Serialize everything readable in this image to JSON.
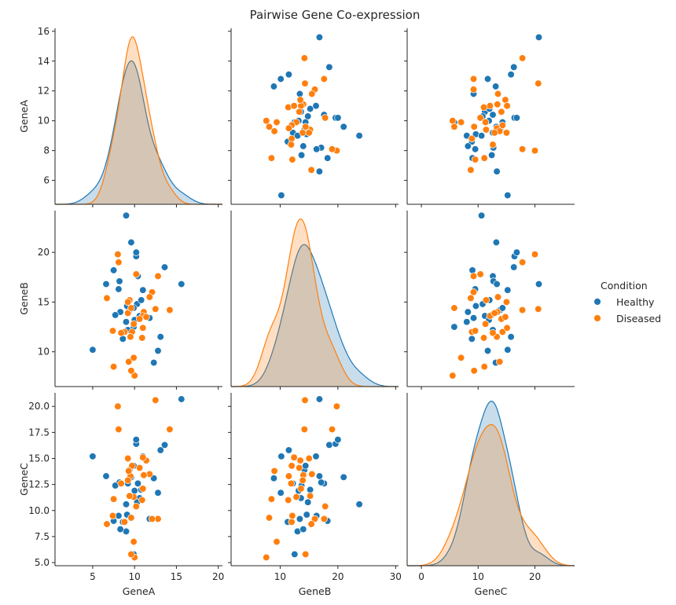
{
  "chart_data": {
    "type": "scatter",
    "title": "Pairwise Gene Co-expression",
    "variables": [
      "GeneA",
      "GeneB",
      "GeneC"
    ],
    "axis_ranges": {
      "GeneA": [
        0.5,
        20.5
      ],
      "GeneB": [
        1.5,
        30.5
      ],
      "GeneC": [
        -2.5,
        27.0
      ]
    },
    "row_ranges": {
      "GeneA": [
        4.4,
        16.2
      ],
      "GeneB": [
        6.5,
        24.2
      ],
      "GeneC": [
        4.7,
        21.3
      ]
    },
    "x_ticks": {
      "GeneA": [
        5,
        10,
        15,
        20
      ],
      "GeneB": [
        10,
        20,
        30
      ],
      "GeneC": [
        0,
        10,
        20
      ]
    },
    "y_tick_labels": {
      "GeneA": [
        "6",
        "8",
        "10",
        "12",
        "14",
        "16"
      ],
      "GeneB": [
        "10",
        "15",
        "20"
      ],
      "GeneC": [
        "5.0",
        "7.5",
        "10.0",
        "12.5",
        "15.0",
        "17.5",
        "20.0"
      ]
    },
    "y_ticks": {
      "GeneA": [
        6,
        8,
        10,
        12,
        14,
        16
      ],
      "GeneB": [
        10,
        15,
        20
      ],
      "GeneC": [
        5,
        7.5,
        10,
        12.5,
        15,
        17.5,
        20
      ]
    },
    "legend": {
      "title": "Condition",
      "placement": "right",
      "entries": [
        "Healthy",
        "Diseased"
      ]
    },
    "colors": {
      "Healthy": "#1f77b4",
      "Diseased": "#ff7f0e"
    },
    "series": [
      {
        "name": "Healthy",
        "points": [
          {
            "GeneA": 15.6,
            "GeneB": 16.8,
            "GeneC": 20.7
          },
          {
            "GeneA": 13.6,
            "GeneB": 18.5,
            "GeneC": 16.3
          },
          {
            "GeneA": 13.1,
            "GeneB": 11.5,
            "GeneC": 15.8
          },
          {
            "GeneA": 12.8,
            "GeneB": 10.1,
            "GeneC": 11.7
          },
          {
            "GeneA": 12.3,
            "GeneB": 8.9,
            "GeneC": 13.1
          },
          {
            "GeneA": 11.8,
            "GeneB": 13.4,
            "GeneC": 9.2
          },
          {
            "GeneA": 11.0,
            "GeneB": 16.2,
            "GeneC": 15.2
          },
          {
            "GeneA": 10.6,
            "GeneB": 13.6,
            "GeneC": 11.2
          },
          {
            "GeneA": 10.4,
            "GeneB": 17.6,
            "GeneC": 12.6
          },
          {
            "GeneA": 10.3,
            "GeneB": 14.8,
            "GeneC": 10.8
          },
          {
            "GeneA": 10.2,
            "GeneB": 19.6,
            "GeneC": 16.4
          },
          {
            "GeneA": 10.2,
            "GeneB": 20.0,
            "GeneC": 16.8
          },
          {
            "GeneA": 10.0,
            "GeneB": 13.2,
            "GeneC": 11.9
          },
          {
            "GeneA": 9.6,
            "GeneB": 21.0,
            "GeneC": 13.2
          },
          {
            "GeneA": 9.4,
            "GeneB": 14.2,
            "GeneC": 13.9
          },
          {
            "GeneA": 9.2,
            "GeneB": 12.2,
            "GeneC": 12.6
          },
          {
            "GeneA": 9.1,
            "GeneB": 14.6,
            "GeneC": 9.6
          },
          {
            "GeneA": 9.0,
            "GeneB": 23.7,
            "GeneC": 10.6
          },
          {
            "GeneA": 8.6,
            "GeneB": 11.3,
            "GeneC": 8.9
          },
          {
            "GeneA": 8.2,
            "GeneB": 17.1,
            "GeneC": 12.7
          },
          {
            "GeneA": 8.1,
            "GeneB": 16.3,
            "GeneC": 9.5
          },
          {
            "GeneA": 7.5,
            "GeneB": 18.2,
            "GeneC": 9.0
          },
          {
            "GeneA": 6.6,
            "GeneB": 16.8,
            "GeneC": 13.3
          },
          {
            "GeneA": 5.0,
            "GeneB": 10.2,
            "GeneC": 15.2
          },
          {
            "GeneA": 9.0,
            "GeneB": 13.0,
            "GeneC": 8.0
          },
          {
            "GeneA": 9.9,
            "GeneB": 12.5,
            "GeneC": 5.8
          },
          {
            "GeneA": 8.3,
            "GeneB": 14.0,
            "GeneC": 8.2
          },
          {
            "GeneA": 9.9,
            "GeneB": 14.4,
            "GeneC": 14.3
          },
          {
            "GeneA": 7.7,
            "GeneB": 13.7,
            "GeneC": 12.4
          },
          {
            "GeneA": 10.8,
            "GeneB": 15.2,
            "GeneC": 12.0
          }
        ]
      },
      {
        "name": "Diseased",
        "points": [
          {
            "GeneA": 14.2,
            "GeneB": 14.2,
            "GeneC": 17.8
          },
          {
            "GeneA": 12.8,
            "GeneB": 17.6,
            "GeneC": 9.2
          },
          {
            "GeneA": 12.5,
            "GeneB": 14.3,
            "GeneC": 20.6
          },
          {
            "GeneA": 12.1,
            "GeneB": 16.0,
            "GeneC": 9.2
          },
          {
            "GeneA": 11.8,
            "GeneB": 15.5,
            "GeneC": 13.5
          },
          {
            "GeneA": 11.1,
            "GeneB": 14.0,
            "GeneC": 13.4
          },
          {
            "GeneA": 11.0,
            "GeneB": 13.6,
            "GeneC": 12.1
          },
          {
            "GeneA": 10.9,
            "GeneB": 11.4,
            "GeneC": 11.0
          },
          {
            "GeneA": 10.6,
            "GeneB": 13.3,
            "GeneC": 14.1
          },
          {
            "GeneA": 10.2,
            "GeneB": 17.8,
            "GeneC": 10.4
          },
          {
            "GeneA": 10.0,
            "GeneB": 7.6,
            "GeneC": 5.5
          },
          {
            "GeneA": 9.9,
            "GeneB": 12.8,
            "GeneC": 11.3
          },
          {
            "GeneA": 9.7,
            "GeneB": 12.0,
            "GeneC": 14.3
          },
          {
            "GeneA": 9.6,
            "GeneB": 8.1,
            "GeneC": 9.3
          },
          {
            "GeneA": 9.5,
            "GeneB": 11.5,
            "GeneC": 13.3
          },
          {
            "GeneA": 9.4,
            "GeneB": 15.2,
            "GeneC": 11.4
          },
          {
            "GeneA": 9.3,
            "GeneB": 9.0,
            "GeneC": 13.8
          },
          {
            "GeneA": 9.2,
            "GeneB": 13.9,
            "GeneC": 12.9
          },
          {
            "GeneA": 8.8,
            "GeneB": 12.0,
            "GeneC": 8.9
          },
          {
            "GeneA": 8.4,
            "GeneB": 11.9,
            "GeneC": 12.6
          },
          {
            "GeneA": 8.0,
            "GeneB": 19.8,
            "GeneC": 20.0
          },
          {
            "GeneA": 7.5,
            "GeneB": 8.5,
            "GeneC": 11.1
          },
          {
            "GeneA": 7.4,
            "GeneB": 12.1,
            "GeneC": 9.5
          },
          {
            "GeneA": 6.7,
            "GeneB": 15.4,
            "GeneC": 8.7
          },
          {
            "GeneA": 9.2,
            "GeneB": 15.0,
            "GeneC": 15.0
          },
          {
            "GeneA": 11.4,
            "GeneB": 13.5,
            "GeneC": 14.8
          },
          {
            "GeneA": 9.9,
            "GeneB": 9.4,
            "GeneC": 7.0
          },
          {
            "GeneA": 8.1,
            "GeneB": 19.0,
            "GeneC": 17.8
          },
          {
            "GeneA": 9.6,
            "GeneB": 14.4,
            "GeneC": 5.8
          },
          {
            "GeneA": 11.0,
            "GeneB": 12.4,
            "GeneC": 15.1
          }
        ]
      }
    ],
    "grid": false,
    "diagonal": "kde"
  }
}
